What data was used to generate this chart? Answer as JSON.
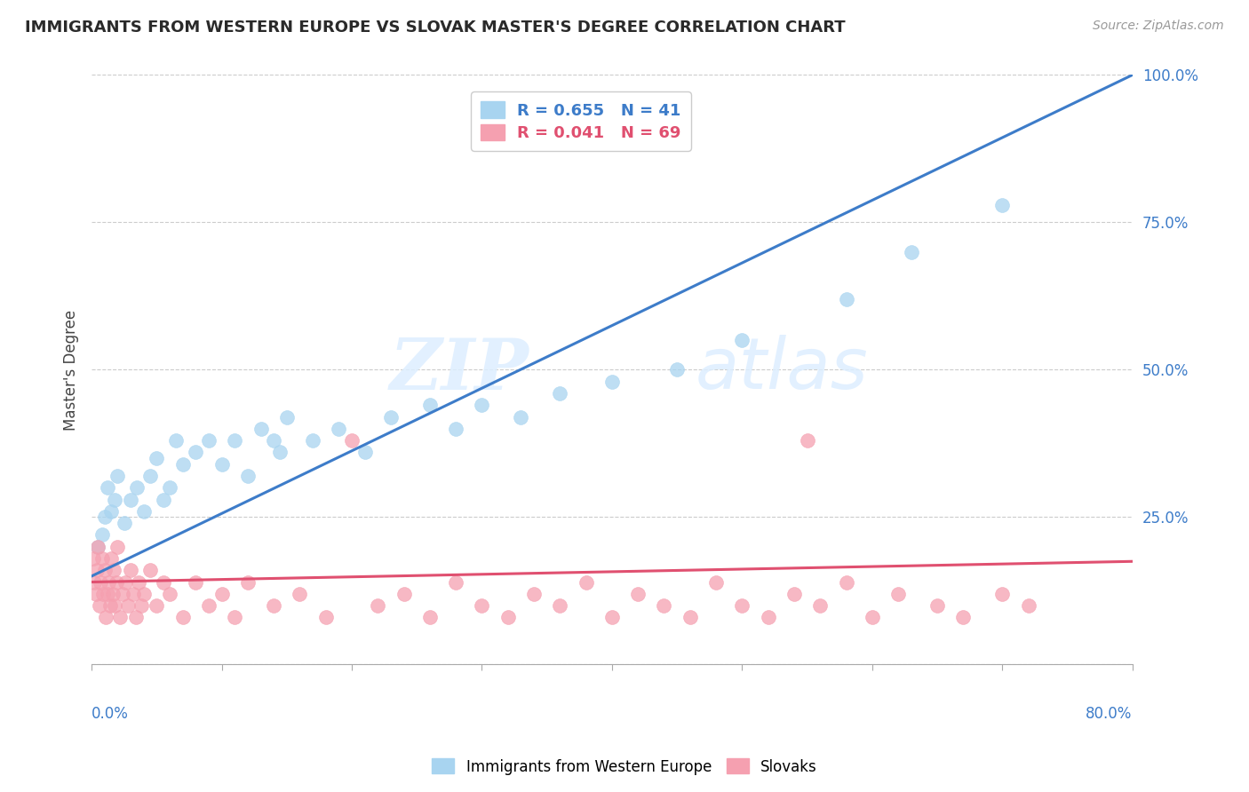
{
  "title": "IMMIGRANTS FROM WESTERN EUROPE VS SLOVAK MASTER'S DEGREE CORRELATION CHART",
  "source": "Source: ZipAtlas.com",
  "ylabel": "Master's Degree",
  "x_min": 0.0,
  "x_max": 80.0,
  "y_min": 0.0,
  "y_max": 100.0,
  "blue_R": 0.655,
  "blue_N": 41,
  "pink_R": 0.041,
  "pink_N": 69,
  "blue_color": "#A8D4F0",
  "blue_line_color": "#3D7CC9",
  "pink_color": "#F5A0B0",
  "pink_line_color": "#E05070",
  "legend_label_blue": "Immigrants from Western Europe",
  "legend_label_pink": "Slovaks",
  "watermark_zip": "ZIP",
  "watermark_atlas": "atlas",
  "blue_line_x0": 0.0,
  "blue_line_y0": 15.0,
  "blue_line_x1": 80.0,
  "blue_line_y1": 100.0,
  "pink_line_x0": 0.0,
  "pink_line_y0": 14.0,
  "pink_line_x1": 80.0,
  "pink_line_y1": 17.5,
  "blue_x": [
    0.5,
    0.8,
    1.0,
    1.2,
    1.5,
    1.8,
    2.0,
    2.5,
    3.0,
    3.5,
    4.0,
    4.5,
    5.0,
    5.5,
    6.0,
    6.5,
    7.0,
    8.0,
    9.0,
    10.0,
    11.0,
    12.0,
    13.0,
    14.0,
    14.5,
    15.0,
    17.0,
    19.0,
    21.0,
    23.0,
    26.0,
    28.0,
    30.0,
    33.0,
    36.0,
    40.0,
    45.0,
    50.0,
    58.0,
    63.0,
    70.0
  ],
  "blue_y": [
    20,
    22,
    25,
    30,
    26,
    28,
    32,
    24,
    28,
    30,
    26,
    32,
    35,
    28,
    30,
    38,
    34,
    36,
    38,
    34,
    38,
    32,
    40,
    38,
    36,
    42,
    38,
    40,
    36,
    42,
    44,
    40,
    44,
    42,
    46,
    48,
    50,
    55,
    62,
    70,
    78
  ],
  "pink_x": [
    0.1,
    0.2,
    0.3,
    0.4,
    0.5,
    0.6,
    0.7,
    0.8,
    0.9,
    1.0,
    1.1,
    1.2,
    1.3,
    1.4,
    1.5,
    1.6,
    1.7,
    1.8,
    1.9,
    2.0,
    2.2,
    2.4,
    2.6,
    2.8,
    3.0,
    3.2,
    3.4,
    3.6,
    3.8,
    4.0,
    4.5,
    5.0,
    5.5,
    6.0,
    7.0,
    8.0,
    9.0,
    10.0,
    11.0,
    12.0,
    14.0,
    16.0,
    18.0,
    20.0,
    22.0,
    24.0,
    26.0,
    28.0,
    30.0,
    32.0,
    34.0,
    36.0,
    38.0,
    40.0,
    42.0,
    44.0,
    46.0,
    48.0,
    50.0,
    52.0,
    54.0,
    56.0,
    58.0,
    60.0,
    62.0,
    65.0,
    67.0,
    70.0,
    72.0
  ],
  "pink_y": [
    18,
    14,
    12,
    16,
    20,
    10,
    14,
    18,
    12,
    16,
    8,
    12,
    14,
    10,
    18,
    12,
    16,
    10,
    14,
    20,
    8,
    12,
    14,
    10,
    16,
    12,
    8,
    14,
    10,
    12,
    16,
    10,
    14,
    12,
    8,
    14,
    10,
    12,
    8,
    14,
    10,
    12,
    8,
    38,
    10,
    12,
    8,
    14,
    10,
    8,
    12,
    10,
    14,
    8,
    12,
    10,
    8,
    14,
    10,
    8,
    12,
    10,
    14,
    8,
    12,
    10,
    8,
    12,
    10
  ],
  "pink_outlier_x": 55.0,
  "pink_outlier_y": 38.0
}
